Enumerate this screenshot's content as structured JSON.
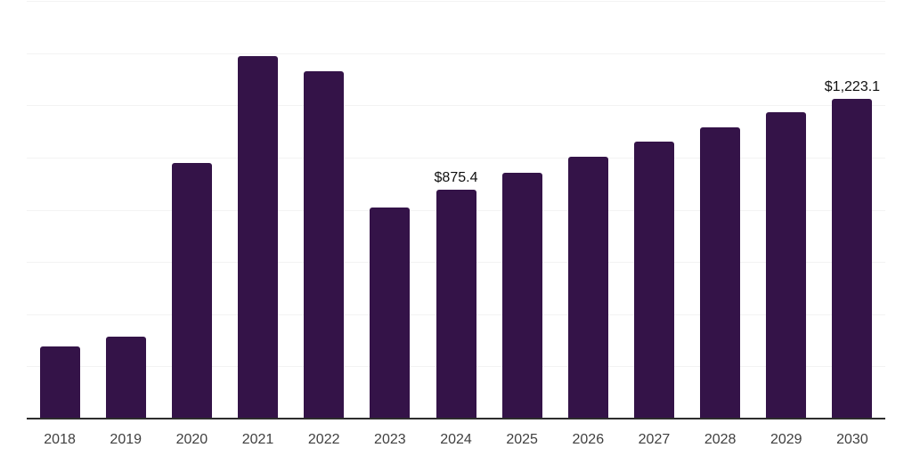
{
  "chart_data": {
    "type": "bar",
    "title": "",
    "xlabel": "",
    "ylabel": "",
    "categories": [
      "2018",
      "2019",
      "2020",
      "2021",
      "2022",
      "2023",
      "2024",
      "2025",
      "2026",
      "2027",
      "2028",
      "2029",
      "2030"
    ],
    "values": [
      275,
      314,
      978,
      1388,
      1331,
      808,
      875.4,
      942,
      1002,
      1062,
      1117,
      1175,
      1223.1
    ],
    "data_labels": {
      "2024": "$875.4",
      "2030": "$1,223.1"
    },
    "ylim": [
      0,
      1600
    ],
    "gridline_step": 200,
    "grid": true,
    "legend": "none",
    "bar_color": "#341348",
    "gridline_color": "#f3f3f3",
    "axis_line_color": "#2d2d2d",
    "tick_label_color": "#404040",
    "data_label_color": "#111111"
  }
}
